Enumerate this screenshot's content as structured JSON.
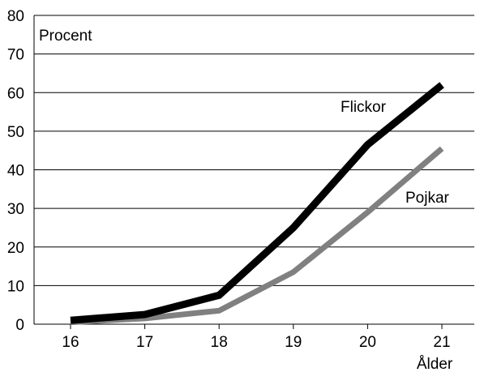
{
  "chart_data": {
    "type": "line",
    "ylabel": "Procent",
    "xlabel": "Ålder",
    "x": [
      16,
      17,
      18,
      19,
      20,
      21
    ],
    "ylim": [
      0,
      80
    ],
    "yticks": [
      0,
      10,
      20,
      30,
      40,
      50,
      60,
      70,
      80
    ],
    "grid": true,
    "series": [
      {
        "name": "Flickor",
        "values": [
          1,
          2.5,
          7.5,
          25,
          46.5,
          62
        ],
        "color": "#000000"
      },
      {
        "name": "Pojkar",
        "values": [
          0.5,
          1.5,
          3.5,
          13.5,
          29,
          45.5
        ],
        "color": "#808080"
      }
    ]
  }
}
